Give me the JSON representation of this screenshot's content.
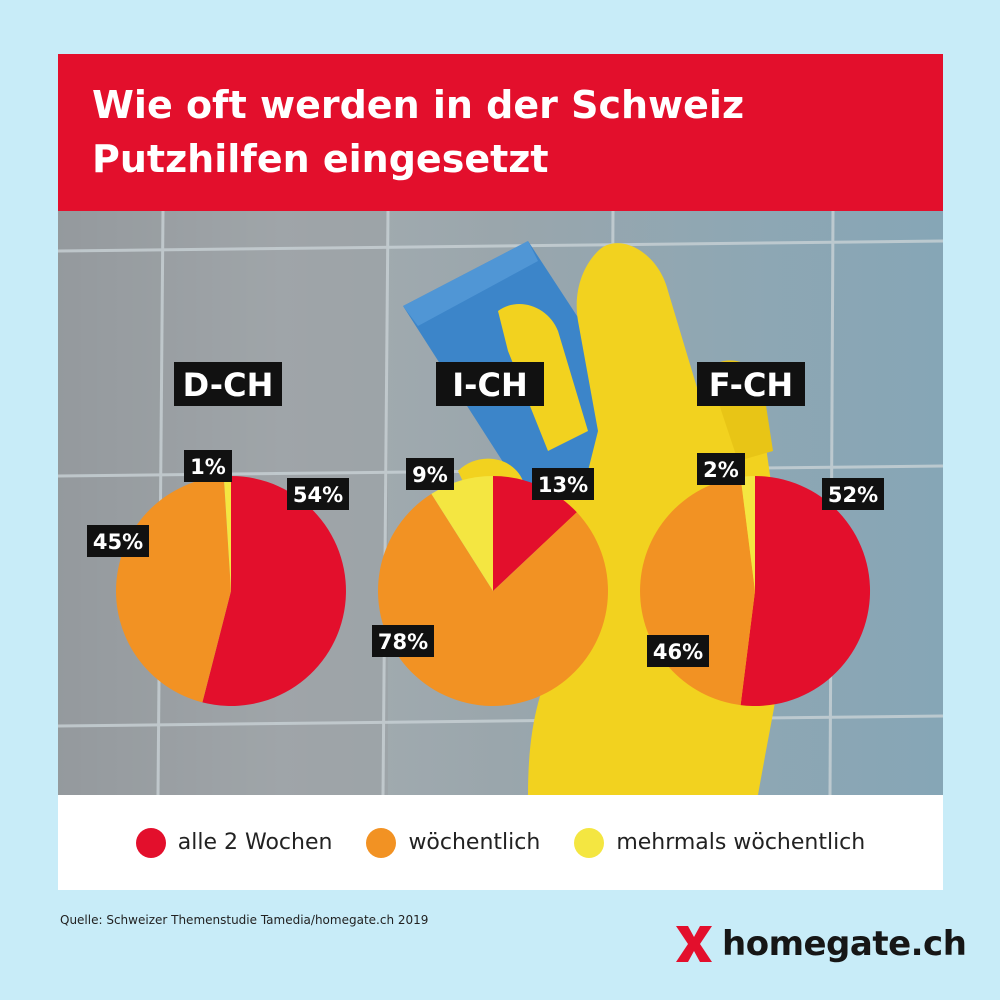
{
  "header": {
    "title_line1": "Wie oft werden in der Schweiz",
    "title_line2": "Putzhilfen eingesetzt"
  },
  "colors": {
    "red": "#e30f2c",
    "orange": "#f29223",
    "yellow": "#f4e641",
    "label_bg": "#111111",
    "background": "#c8ecf8"
  },
  "chart_data": [
    {
      "type": "pie",
      "title": "D-CH",
      "categories": [
        "alle 2 Wochen",
        "wöchentlich",
        "mehrmals wöchentlich"
      ],
      "values": [
        54,
        45,
        1
      ],
      "labels": [
        "54%",
        "45%",
        "1%"
      ]
    },
    {
      "type": "pie",
      "title": "I-CH",
      "categories": [
        "alle 2 Wochen",
        "wöchentlich",
        "mehrmals wöchentlich"
      ],
      "values": [
        13,
        78,
        9
      ],
      "labels": [
        "13%",
        "78%",
        "9%"
      ]
    },
    {
      "type": "pie",
      "title": "F-CH",
      "categories": [
        "alle 2 Wochen",
        "wöchentlich",
        "mehrmals wöchentlich"
      ],
      "values": [
        52,
        46,
        2
      ],
      "labels": [
        "52%",
        "46%",
        "2%"
      ]
    }
  ],
  "legend": [
    {
      "label": "alle 2 Wochen",
      "color": "#e30f2c"
    },
    {
      "label": "wöchentlich",
      "color": "#f29223"
    },
    {
      "label": "mehrmals wöchentlich",
      "color": "#f4e641"
    }
  ],
  "footer": {
    "source": "Quelle: Schweizer Themenstudie Tamedia/homegate.ch 2019",
    "logo_text": "homegate.ch"
  }
}
